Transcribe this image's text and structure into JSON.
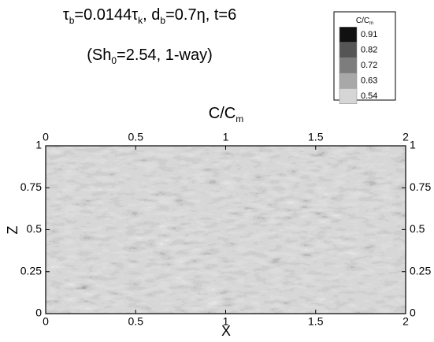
{
  "chart_data": {
    "type": "contour",
    "title": [
      {
        "text": "τ",
        "sub": false
      },
      {
        "text": "b",
        "sub": true
      },
      {
        "text": "=0.0144τ",
        "sub": false
      },
      {
        "text": "k",
        "sub": true
      },
      {
        "text": ", d",
        "sub": false
      },
      {
        "text": "b",
        "sub": true
      },
      {
        "text": "=0.7η, t=6",
        "sub": false
      }
    ],
    "subtitle": [
      {
        "text": "(Sh",
        "sub": false
      },
      {
        "text": "0",
        "sub": true
      },
      {
        "text": "=2.54, 1-way)",
        "sub": false
      }
    ],
    "plot_title": [
      {
        "text": "C/C",
        "sub": false
      },
      {
        "text": "m",
        "sub": true
      }
    ],
    "xlabel": "X",
    "ylabel": "Z",
    "xlim": [
      0,
      2
    ],
    "xticks": [
      0,
      0.5,
      1,
      1.5,
      2
    ],
    "ylim": [
      0,
      1
    ],
    "yticks": [
      0,
      0.25,
      0.5,
      0.75,
      1
    ],
    "colorbar": {
      "title": [
        {
          "text": "C/C",
          "sub": false
        },
        {
          "text": "m",
          "sub": true
        }
      ],
      "levels": [
        0.91,
        0.82,
        0.72,
        0.63,
        0.54
      ],
      "colors": [
        "#111111",
        "#555555",
        "#7d7d7d",
        "#a8a8a8",
        "#d6d6d6"
      ]
    }
  }
}
